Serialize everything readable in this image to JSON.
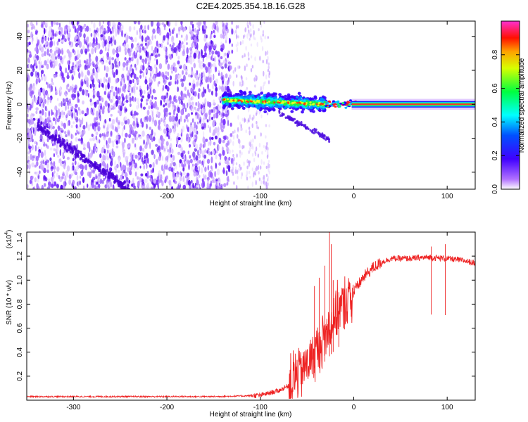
{
  "title": "C2E4.2025.354.18.16.G28",
  "chart_data": [
    {
      "type": "heatmap",
      "name": "spectrogram",
      "xlabel": "Height of straight line (km)",
      "ylabel": "Frequency (Hz)",
      "xlim": [
        -350,
        130
      ],
      "ylim": [
        -50,
        49
      ],
      "xticks": [
        -300,
        -200,
        -100,
        0,
        100
      ],
      "yticks": [
        -40,
        -20,
        0,
        20,
        40
      ],
      "colorbar": {
        "label": "Normalized spectral amplitude",
        "range": [
          0.0,
          1.0
        ],
        "ticks": [
          0.0,
          0.2,
          0.4,
          0.6,
          0.8
        ],
        "tick_labels": [
          "0.0",
          "0.2",
          "0.4",
          "0.6",
          "0.8"
        ],
        "colormap": [
          "#ffffff",
          "#6a00ff",
          "#1a00ff",
          "#00c8ff",
          "#00ff40",
          "#f0ff00",
          "#ff2000",
          "#ff30c8"
        ]
      },
      "features": [
        {
          "description": "broadband noise",
          "x_range": [
            -350,
            -130
          ],
          "freq_range": [
            -50,
            49
          ],
          "amplitude": 0.1
        },
        {
          "description": "sparse noise",
          "x_range": [
            -130,
            -90
          ],
          "freq_range": [
            -50,
            49
          ],
          "amplitude": 0.05
        },
        {
          "description": "faint descending trace",
          "x_start": -340,
          "x_end": -240,
          "freq_start": -12,
          "freq_end": -50,
          "amplitude": 0.15
        },
        {
          "description": "carrier signal cluster",
          "x_range": [
            -140,
            -30
          ],
          "freq_center": 0,
          "amplitude": 0.5
        },
        {
          "description": "descending branch",
          "x_start": -80,
          "x_end": -25,
          "freq_start": -5,
          "freq_end": -21,
          "amplitude": 0.2
        },
        {
          "description": "stable carrier line",
          "x_range": [
            0,
            130
          ],
          "freq_center": 0,
          "amplitude": 1.0
        }
      ]
    },
    {
      "type": "line",
      "name": "snr",
      "xlabel": "Height of straight line (km)",
      "ylabel": "SNR (10 * v/v)",
      "y_multiplier": "(x10",
      "y_multiplier_exp": "4",
      "y_multiplier_close": ")",
      "xlim": [
        -350,
        130
      ],
      "ylim": [
        0,
        1.4
      ],
      "xticks": [
        -300,
        -200,
        -100,
        0,
        100
      ],
      "yticks": [
        0.2,
        0.4,
        0.6,
        0.8,
        1.0,
        1.2,
        1.4
      ],
      "ytick_labels": [
        "0.2",
        "0.4",
        "0.6",
        "0.8",
        "1.0",
        "1.2",
        "1.4"
      ],
      "color": "#ee2222",
      "series": [
        {
          "name": "SNR",
          "x": [
            -350,
            -300,
            -250,
            -200,
            -150,
            -120,
            -100,
            -90,
            -80,
            -70,
            -60,
            -50,
            -40,
            -30,
            -20,
            -10,
            0,
            10,
            20,
            30,
            40,
            60,
            80,
            100,
            120,
            130
          ],
          "y": [
            0.03,
            0.03,
            0.03,
            0.03,
            0.03,
            0.035,
            0.04,
            0.06,
            0.08,
            0.12,
            0.22,
            0.3,
            0.4,
            0.55,
            0.7,
            0.8,
            0.9,
            1.02,
            1.1,
            1.15,
            1.18,
            1.18,
            1.19,
            1.18,
            1.16,
            1.14
          ]
        }
      ]
    }
  ]
}
